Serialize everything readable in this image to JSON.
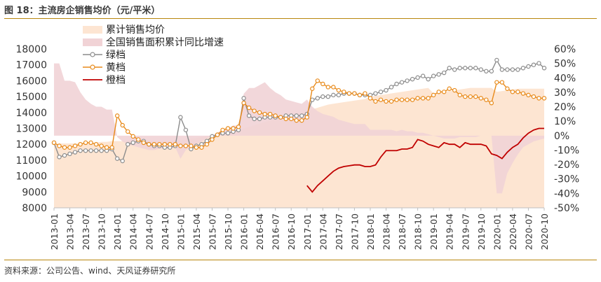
{
  "header": {
    "title": "图 18：主流房企销售均价（元/平米）"
  },
  "footer": {
    "source": "资料来源：公司公告、wind、天风证券研究所"
  },
  "colors": {
    "grey": "#8c8c8c",
    "yellow": "#e88a1a",
    "orange": "#c00000",
    "area": "#fde5d2",
    "growth": "#f1d3d6"
  },
  "chart_data": {
    "type": "line",
    "title": "",
    "left_axis": {
      "min": 8000,
      "max": 18000,
      "ticks": [
        8000,
        9000,
        10000,
        11000,
        12000,
        13000,
        14000,
        15000,
        16000,
        17000,
        18000
      ]
    },
    "right_axis": {
      "min": -0.5,
      "max": 0.6,
      "ticks": [
        "60%",
        "50%",
        "40%",
        "30%",
        "20%",
        "10%",
        "0%",
        "-10%",
        "-20%",
        "-30%",
        "-40%",
        "-50%"
      ],
      "tick_values": [
        0.6,
        0.5,
        0.4,
        0.3,
        0.2,
        0.1,
        0,
        -0.1,
        -0.2,
        -0.3,
        -0.4,
        -0.5
      ]
    },
    "x_tick_labels": [
      "2013-01",
      "2013-04",
      "2013-07",
      "2013-10",
      "2014-01",
      "2014-04",
      "2014-07",
      "2014-10",
      "2015-01",
      "2015-04",
      "2015-07",
      "2015-10",
      "2016-01",
      "2016-04",
      "2016-07",
      "2016-10",
      "2017-01",
      "2017-04",
      "2017-07",
      "2017-10",
      "2018-01",
      "2018-04",
      "2018-07",
      "2018-10",
      "2019-01",
      "2019-04",
      "2019-07",
      "2019-10",
      "2020-01",
      "2020-04",
      "2020-07",
      "2020-10"
    ],
    "legend": {
      "position": "top-left",
      "entries": [
        "累计销售均价",
        "全国销售面积累计同比增速",
        "绿档",
        "黄档",
        "橙档"
      ]
    },
    "series": [
      {
        "name": "累计销售均价",
        "axis": "left",
        "type": "area",
        "values": [
          12000,
          12050,
          12050,
          12050,
          12050,
          12050,
          12050,
          12050,
          12100,
          12150,
          12150,
          12200,
          12200,
          12200,
          12200,
          12200,
          12200,
          12200,
          12200,
          12200,
          12200,
          12200,
          12200,
          12250,
          12250,
          12300,
          12350,
          12400,
          12450,
          12500,
          12550,
          12600,
          12650,
          12700,
          12750,
          12800,
          13000,
          13100,
          13200,
          13300,
          13400,
          13500,
          13600,
          13700,
          13800,
          13850,
          13900,
          13950,
          14100,
          14200,
          14300,
          14400,
          14500,
          14550,
          14600,
          14650,
          14700,
          14750,
          14800,
          14850,
          15000,
          15050,
          15100,
          15150,
          15200,
          15250,
          15300,
          15350,
          15400,
          15450,
          15500,
          15550,
          15200,
          15250,
          15300,
          15350,
          15400,
          15450,
          15500,
          15550,
          15550,
          15550,
          15550,
          15550,
          15300,
          15350,
          15400,
          15450,
          15500,
          15500,
          15500,
          15500,
          15500,
          15500
        ]
      },
      {
        "name": "全国销售面积累计同比增速",
        "axis": "right",
        "type": "area",
        "values": [
          0.5,
          0.5,
          0.38,
          0.38,
          0.37,
          0.3,
          0.25,
          0.22,
          0.2,
          0.2,
          0.18,
          0.18,
          -0.01,
          -0.04,
          -0.06,
          -0.07,
          -0.08,
          -0.09,
          -0.1,
          -0.1,
          -0.09,
          -0.09,
          -0.09,
          -0.08,
          -0.16,
          -0.1,
          -0.08,
          -0.06,
          -0.04,
          -0.02,
          0,
          0.02,
          0.04,
          0.05,
          0.07,
          0.07,
          0.29,
          0.33,
          0.33,
          0.35,
          0.37,
          0.33,
          0.3,
          0.28,
          0.25,
          0.24,
          0.23,
          0.22,
          0.25,
          0.2,
          0.17,
          0.15,
          0.14,
          0.13,
          0.11,
          0.1,
          0.09,
          0.08,
          0.08,
          0.08,
          0.04,
          0.04,
          0.04,
          0.04,
          0.04,
          0.03,
          0.04,
          0.03,
          0.03,
          0.02,
          0.02,
          0.01,
          0.0,
          -0.01,
          -0.02,
          -0.02,
          -0.02,
          -0.01,
          -0.01,
          -0.01,
          -0.01,
          0.0,
          0.0,
          0.0,
          -0.4,
          -0.4,
          -0.26,
          -0.19,
          -0.13,
          -0.08,
          -0.06,
          -0.04,
          -0.03,
          -0.02
        ]
      },
      {
        "name": "绿档",
        "axis": "left",
        "marker": "circle",
        "values": [
          12100,
          11200,
          11300,
          11400,
          11500,
          11600,
          11600,
          11600,
          11600,
          11600,
          11600,
          11700,
          11100,
          10950,
          12000,
          12100,
          12200,
          12200,
          12000,
          11900,
          11900,
          11800,
          11800,
          11900,
          13700,
          12900,
          11700,
          11900,
          12000,
          12200,
          12500,
          12600,
          12700,
          12700,
          12800,
          12900,
          14900,
          13800,
          13600,
          13600,
          13700,
          13700,
          13700,
          13700,
          13800,
          13800,
          13800,
          13800,
          13900,
          14800,
          14900,
          15000,
          15000,
          15100,
          15100,
          15200,
          15200,
          15200,
          15100,
          15100,
          15100,
          15200,
          15300,
          15400,
          15600,
          15800,
          15900,
          16000,
          16100,
          16200,
          16300,
          16100,
          16300,
          16400,
          16500,
          16800,
          16700,
          16800,
          16800,
          16800,
          16800,
          16700,
          16600,
          16600,
          17300,
          16700,
          16700,
          16700,
          16700,
          16800,
          16900,
          17000,
          17100,
          16800
        ]
      },
      {
        "name": "黄档",
        "axis": "left",
        "marker": "circle",
        "values": [
          12100,
          11900,
          11800,
          11800,
          11900,
          12000,
          12100,
          12100,
          12000,
          11900,
          11800,
          11800,
          13800,
          13200,
          12800,
          12500,
          12300,
          12100,
          12000,
          12000,
          12000,
          12000,
          12000,
          12000,
          11900,
          11900,
          11900,
          11800,
          11800,
          12000,
          12300,
          12600,
          12900,
          13000,
          13000,
          13100,
          14600,
          14300,
          14100,
          14000,
          13900,
          13900,
          13800,
          13700,
          13600,
          13600,
          13500,
          13500,
          13700,
          15500,
          16000,
          15800,
          15600,
          15600,
          15400,
          15300,
          15200,
          15200,
          15100,
          15200,
          14900,
          14700,
          14800,
          14700,
          14700,
          14800,
          14800,
          14800,
          14800,
          14900,
          14900,
          14900,
          15100,
          15300,
          15300,
          15500,
          15400,
          15100,
          15000,
          15000,
          15000,
          14900,
          14800,
          14600,
          15900,
          15900,
          15500,
          15300,
          15300,
          15200,
          15100,
          15000,
          14900,
          14900
        ]
      },
      {
        "name": "橙档",
        "axis": "left",
        "marker": "none",
        "start_index": 48,
        "values": [
          9400,
          9000,
          9400,
          9700,
          10000,
          10300,
          10500,
          10600,
          10650,
          10700,
          10700,
          10600,
          10600,
          10700,
          11200,
          11600,
          11600,
          11600,
          11700,
          11700,
          11800,
          12300,
          12200,
          12000,
          11900,
          11800,
          12100,
          12000,
          12000,
          11800,
          12100,
          12000,
          12000,
          12000,
          11900,
          11400,
          11300,
          11100,
          11500,
          11800,
          12000,
          12400,
          12700,
          12900,
          13000,
          13000
        ]
      }
    ]
  }
}
